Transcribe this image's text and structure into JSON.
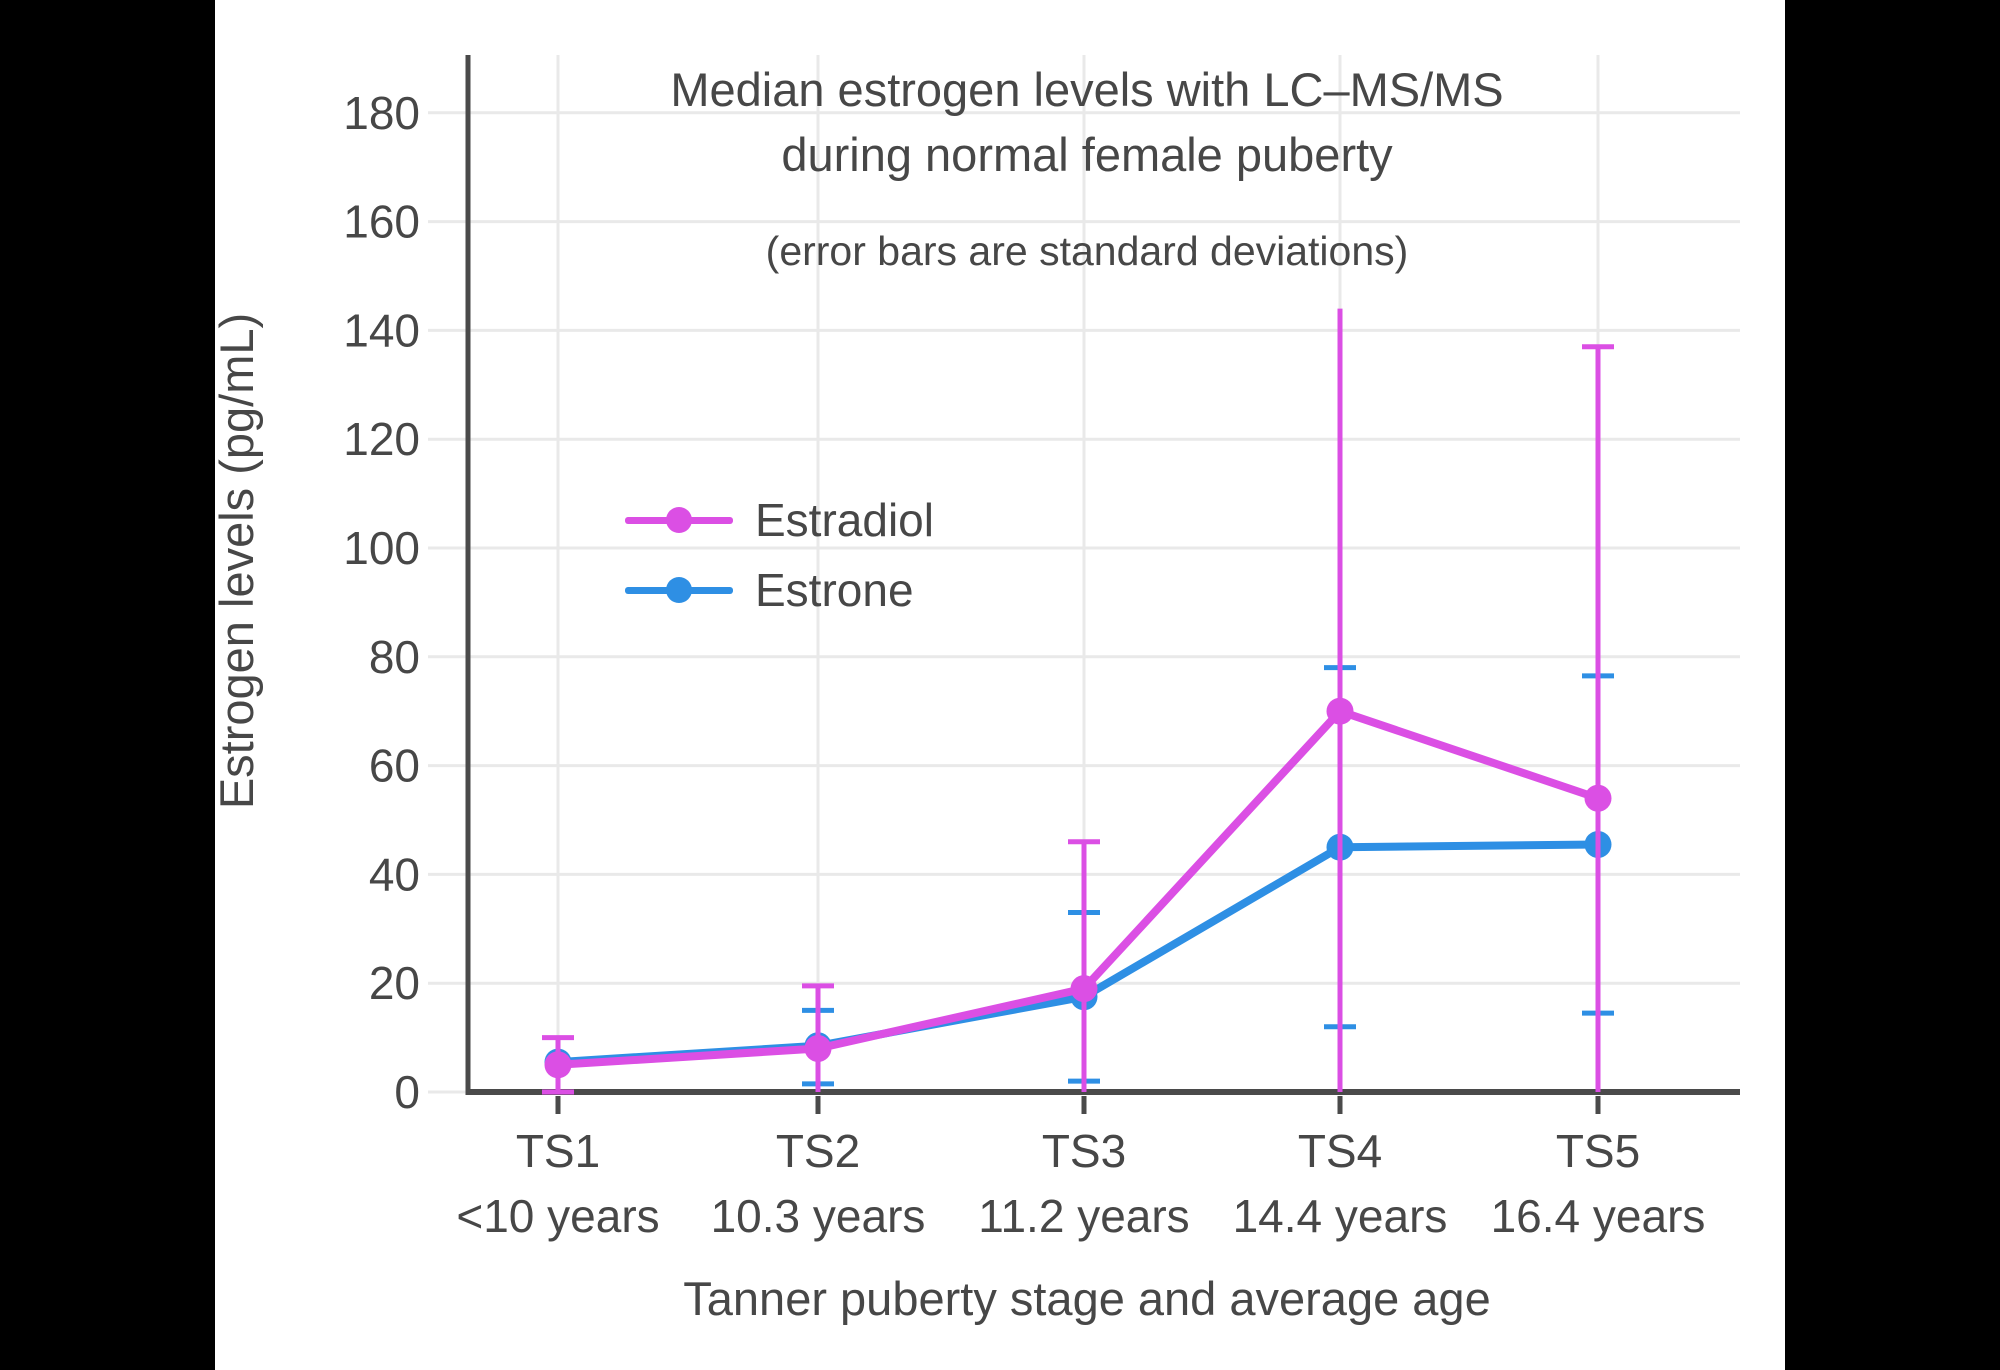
{
  "frame": {
    "background_color": "#000000",
    "panel_color": "#ffffff"
  },
  "style": {
    "text_color": "#474747",
    "grid_color": "#e9e9e9",
    "axis_color": "#4a4a4a"
  },
  "chart_data": {
    "type": "line",
    "title": "Median estrogen levels with LC–MS/MS",
    "title_line2": "during normal female puberty",
    "subtitle": "(error bars are standard deviations)",
    "xlabel": "Tanner puberty stage and average age",
    "ylabel": "Estrogen levels (pg/mL)",
    "categories": [
      "TS1",
      "TS2",
      "TS3",
      "TS4",
      "TS5"
    ],
    "category_sublabels": [
      "<10 years",
      "10.3 years",
      "11.2 years",
      "14.4 years",
      "16.4 years"
    ],
    "yticks": [
      0,
      20,
      40,
      60,
      80,
      100,
      120,
      140,
      160,
      180
    ],
    "ylim": [
      0,
      190
    ],
    "grid": true,
    "legend_position": "inside upper-left",
    "legend_order": [
      "Estradiol",
      "Estrone"
    ],
    "series": [
      {
        "name": "Estrone",
        "color": "#2E8FE4",
        "values": [
          5.5,
          8.5,
          17.5,
          45,
          45.5
        ],
        "error_top": [
          null,
          15,
          33,
          78,
          76.5
        ],
        "error_bottom": [
          null,
          1.5,
          2,
          12,
          14.5
        ],
        "caps_top": [
          false,
          true,
          true,
          true,
          true
        ],
        "caps_bottom": [
          false,
          true,
          true,
          true,
          true
        ]
      },
      {
        "name": "Estradiol",
        "color": "#DB4FE4",
        "values": [
          5,
          8,
          19,
          70,
          54
        ],
        "error_top": [
          10,
          19.5,
          46,
          144,
          137
        ],
        "error_bottom": [
          0,
          0,
          0,
          0,
          0
        ],
        "caps_top": [
          true,
          true,
          true,
          false,
          true
        ],
        "caps_bottom": [
          true,
          false,
          false,
          false,
          false
        ]
      }
    ]
  }
}
